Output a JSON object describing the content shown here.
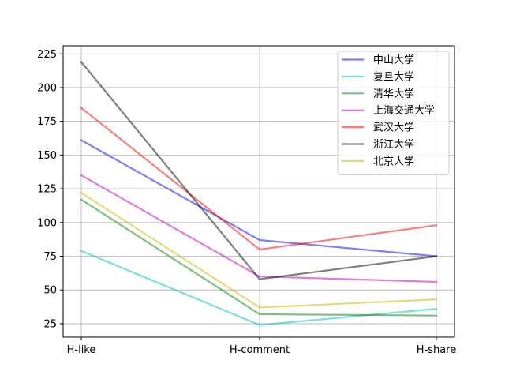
{
  "chart_data": {
    "type": "line",
    "categories": [
      "H-like",
      "H-comment",
      "H-share"
    ],
    "series": [
      {
        "name": "中山大学",
        "color": "#0000dd",
        "values": [
          161,
          87,
          75
        ]
      },
      {
        "name": "复旦大学",
        "color": "#00bbbb",
        "values": [
          79,
          24,
          36
        ]
      },
      {
        "name": "清华大学",
        "color": "#008000",
        "values": [
          117,
          32,
          31
        ]
      },
      {
        "name": "上海交通大学",
        "color": "#bb00bb",
        "values": [
          135,
          60,
          56
        ]
      },
      {
        "name": "武汉大学",
        "color": "#ee0000",
        "values": [
          185,
          80,
          98
        ]
      },
      {
        "name": "浙江大学",
        "color": "#000000",
        "values": [
          219,
          58,
          75
        ]
      },
      {
        "name": "北京大学",
        "color": "#c8b400",
        "values": [
          122,
          37,
          43
        ]
      }
    ],
    "yticks": [
      25,
      50,
      75,
      100,
      125,
      150,
      175,
      200,
      225
    ],
    "ylim": [
      15,
      231
    ],
    "grid": true,
    "legend": "top-right",
    "title": "",
    "xlabel": "",
    "ylabel": ""
  }
}
